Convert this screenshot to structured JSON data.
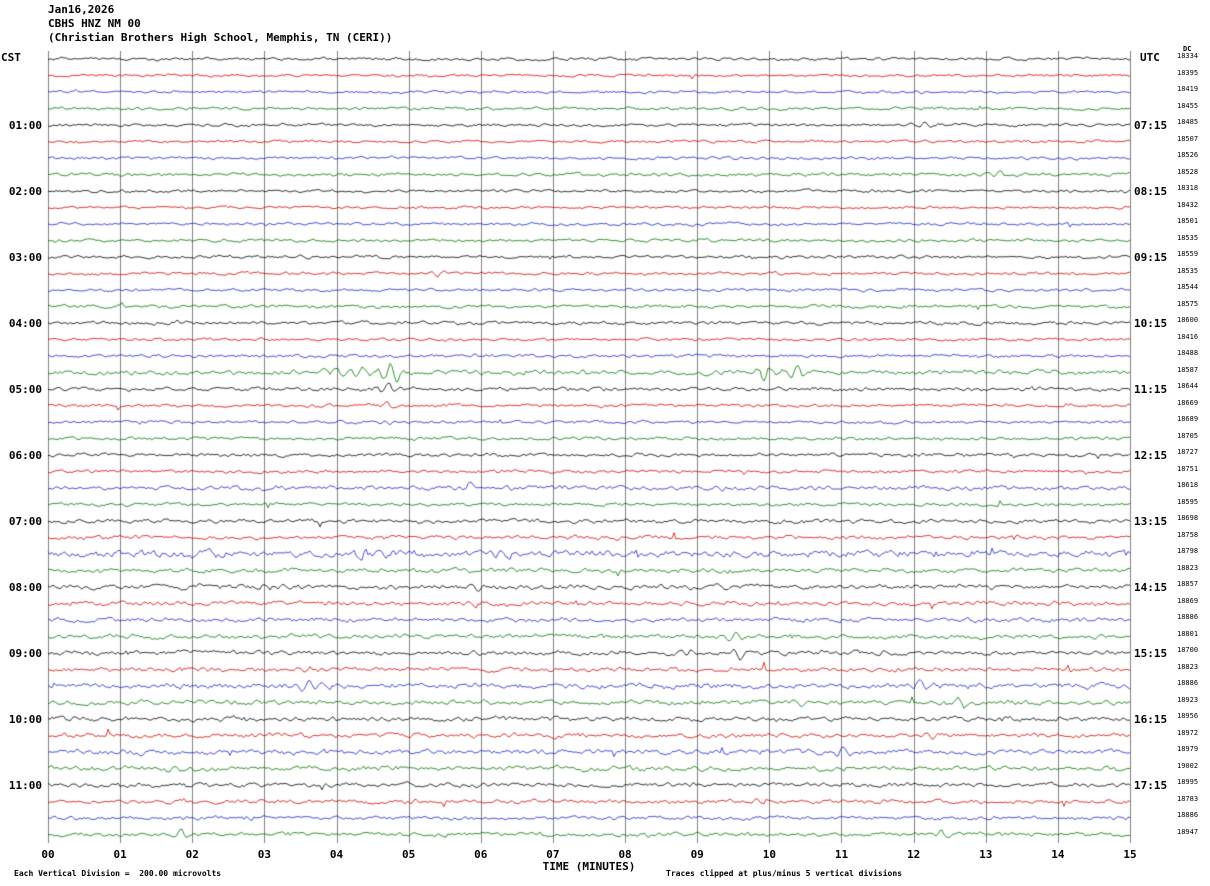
{
  "header": {
    "date": "Jan16,2026",
    "station": "CBHS HNZ NM 00",
    "location": "(Christian Brothers High School, Memphis, TN (CERI))"
  },
  "axis": {
    "left_tz": "CST",
    "right_tz": "UTC",
    "dc_header": "DC",
    "x_label": "TIME (MINUTES)",
    "x_ticks": [
      "00",
      "01",
      "02",
      "03",
      "04",
      "05",
      "06",
      "07",
      "08",
      "09",
      "10",
      "11",
      "12",
      "13",
      "14",
      "15"
    ]
  },
  "footer": {
    "scale_note": "Each Vertical Division =  200.00 microvolts",
    "clip_note": "Traces clipped at plus/minus 5 vertical divisions"
  },
  "left_hour_labels": [
    {
      "row": 4,
      "label": "01:00"
    },
    {
      "row": 8,
      "label": "02:00"
    },
    {
      "row": 12,
      "label": "03:00"
    },
    {
      "row": 16,
      "label": "04:00"
    },
    {
      "row": 20,
      "label": "05:00"
    },
    {
      "row": 24,
      "label": "06:00"
    },
    {
      "row": 28,
      "label": "07:00"
    },
    {
      "row": 32,
      "label": "08:00"
    },
    {
      "row": 36,
      "label": "09:00"
    },
    {
      "row": 40,
      "label": "10:00"
    },
    {
      "row": 44,
      "label": "11:00"
    }
  ],
  "right_hour_labels": [
    {
      "row": 4,
      "label": "07:15"
    },
    {
      "row": 8,
      "label": "08:15"
    },
    {
      "row": 12,
      "label": "09:15"
    },
    {
      "row": 16,
      "label": "10:15"
    },
    {
      "row": 20,
      "label": "11:15"
    },
    {
      "row": 24,
      "label": "12:15"
    },
    {
      "row": 28,
      "label": "13:15"
    },
    {
      "row": 32,
      "label": "14:15"
    },
    {
      "row": 36,
      "label": "15:15"
    },
    {
      "row": 40,
      "label": "16:15"
    },
    {
      "row": 44,
      "label": "17:15"
    }
  ],
  "chart_data": {
    "type": "line",
    "title": "CBHS HNZ NM 00 helicorder, 15-minute traces",
    "xlabel": "TIME (MINUTES)",
    "x_range_minutes": [
      0,
      15
    ],
    "grid": true,
    "minutes_per_row": 15,
    "trace_color_cycle": [
      "#000000",
      "#d40000",
      "#2222cc",
      "#007700"
    ],
    "rows": [
      {
        "dc": 18334,
        "color": "#000000",
        "amp": 1.0
      },
      {
        "dc": 18395,
        "color": "#d40000",
        "amp": 0.9
      },
      {
        "dc": 18419,
        "color": "#2222cc",
        "amp": 0.9
      },
      {
        "dc": 18455,
        "color": "#007700",
        "amp": 1.0
      },
      {
        "dc": 18485,
        "color": "#000000",
        "amp": 1.0
      },
      {
        "dc": 18507,
        "color": "#d40000",
        "amp": 0.9
      },
      {
        "dc": 18526,
        "color": "#2222cc",
        "amp": 1.0
      },
      {
        "dc": 18528,
        "color": "#007700",
        "amp": 1.1
      },
      {
        "dc": 18318,
        "color": "#000000",
        "amp": 1.0
      },
      {
        "dc": 18432,
        "color": "#d40000",
        "amp": 0.9
      },
      {
        "dc": 18501,
        "color": "#2222cc",
        "amp": 1.0
      },
      {
        "dc": 18535,
        "color": "#007700",
        "amp": 1.0
      },
      {
        "dc": 18559,
        "color": "#000000",
        "amp": 1.1
      },
      {
        "dc": 18535,
        "color": "#d40000",
        "amp": 1.0
      },
      {
        "dc": 18544,
        "color": "#2222cc",
        "amp": 1.0
      },
      {
        "dc": 18575,
        "color": "#007700",
        "amp": 1.1
      },
      {
        "dc": 18600,
        "color": "#000000",
        "amp": 1.2
      },
      {
        "dc": 18416,
        "color": "#d40000",
        "amp": 1.0
      },
      {
        "dc": 18488,
        "color": "#2222cc",
        "amp": 1.1
      },
      {
        "dc": 18587,
        "color": "#007700",
        "amp": 1.6
      },
      {
        "dc": 18644,
        "color": "#000000",
        "amp": 1.3
      },
      {
        "dc": 18669,
        "color": "#d40000",
        "amp": 1.1
      },
      {
        "dc": 18689,
        "color": "#2222cc",
        "amp": 1.0
      },
      {
        "dc": 18705,
        "color": "#007700",
        "amp": 1.1
      },
      {
        "dc": 18727,
        "color": "#000000",
        "amp": 1.2
      },
      {
        "dc": 18751,
        "color": "#d40000",
        "amp": 1.1
      },
      {
        "dc": 18618,
        "color": "#2222cc",
        "amp": 1.5
      },
      {
        "dc": 18595,
        "color": "#007700",
        "amp": 1.1
      },
      {
        "dc": 18698,
        "color": "#000000",
        "amp": 1.4
      },
      {
        "dc": 18758,
        "color": "#d40000",
        "amp": 1.3
      },
      {
        "dc": 18798,
        "color": "#2222cc",
        "amp": 2.3
      },
      {
        "dc": 18823,
        "color": "#007700",
        "amp": 1.5
      },
      {
        "dc": 18857,
        "color": "#000000",
        "amp": 1.7
      },
      {
        "dc": 18869,
        "color": "#d40000",
        "amp": 1.5
      },
      {
        "dc": 18886,
        "color": "#2222cc",
        "amp": 1.4
      },
      {
        "dc": 18801,
        "color": "#007700",
        "amp": 1.5
      },
      {
        "dc": 18700,
        "color": "#000000",
        "amp": 1.6
      },
      {
        "dc": 18823,
        "color": "#d40000",
        "amp": 1.5
      },
      {
        "dc": 18886,
        "color": "#2222cc",
        "amp": 1.8
      },
      {
        "dc": 18923,
        "color": "#007700",
        "amp": 1.6
      },
      {
        "dc": 18956,
        "color": "#000000",
        "amp": 1.6
      },
      {
        "dc": 18972,
        "color": "#d40000",
        "amp": 1.5
      },
      {
        "dc": 18979,
        "color": "#2222cc",
        "amp": 1.7
      },
      {
        "dc": 19002,
        "color": "#007700",
        "amp": 1.6
      },
      {
        "dc": 18995,
        "color": "#000000",
        "amp": 1.5
      },
      {
        "dc": 18783,
        "color": "#d40000",
        "amp": 1.4
      },
      {
        "dc": 18886,
        "color": "#2222cc",
        "amp": 1.3
      },
      {
        "dc": 18947,
        "color": "#007700",
        "amp": 1.4
      }
    ],
    "events": [
      {
        "row": 4,
        "m": 12.15,
        "a": 4,
        "w": 0.1
      },
      {
        "row": 7,
        "m": 13.2,
        "a": 3,
        "w": 0.15
      },
      {
        "row": 13,
        "m": 5.4,
        "a": 3,
        "w": 0.1
      },
      {
        "row": 19,
        "m": 4.3,
        "a": 4,
        "w": 0.35
      },
      {
        "row": 19,
        "m": 4.78,
        "a": 11,
        "w": 0.09
      },
      {
        "row": 19,
        "m": 9.95,
        "a": 8,
        "w": 0.1
      },
      {
        "row": 19,
        "m": 10.35,
        "a": 11,
        "w": 0.09
      },
      {
        "row": 20,
        "m": 4.72,
        "a": 9,
        "w": 0.07
      },
      {
        "row": 21,
        "m": 4.7,
        "a": 4,
        "w": 0.07
      },
      {
        "row": 22,
        "m": 4.7,
        "a": 2.5,
        "w": 0.08
      },
      {
        "row": 26,
        "m": 5.85,
        "a": 5,
        "w": 0.1
      },
      {
        "row": 26,
        "m": 9.3,
        "a": 4,
        "w": 0.1
      },
      {
        "row": 28,
        "m": 5.3,
        "a": 3,
        "w": 0.12
      },
      {
        "row": 30,
        "m": 4.4,
        "a": 5,
        "w": 0.15
      },
      {
        "row": 30,
        "m": 6.35,
        "a": 4,
        "w": 0.12
      },
      {
        "row": 30,
        "m": 9.1,
        "a": 4,
        "w": 0.12
      },
      {
        "row": 32,
        "m": 5.95,
        "a": 5,
        "w": 0.1
      },
      {
        "row": 33,
        "m": 5.9,
        "a": 3,
        "w": 0.1
      },
      {
        "row": 35,
        "m": 9.5,
        "a": 4,
        "w": 0.12
      },
      {
        "row": 36,
        "m": 8.85,
        "a": 5,
        "w": 0.08
      },
      {
        "row": 36,
        "m": 9.55,
        "a": 7,
        "w": 0.08
      },
      {
        "row": 37,
        "m": 3.6,
        "a": 3,
        "w": 0.12
      },
      {
        "row": 38,
        "m": 3.65,
        "a": 6,
        "w": 0.2
      },
      {
        "row": 38,
        "m": 12.1,
        "a": 7,
        "w": 0.15
      },
      {
        "row": 39,
        "m": 10.4,
        "a": 4,
        "w": 0.12
      },
      {
        "row": 39,
        "m": 12.7,
        "a": 5,
        "w": 0.1
      },
      {
        "row": 41,
        "m": 12.25,
        "a": 4,
        "w": 0.1
      },
      {
        "row": 42,
        "m": 11.0,
        "a": 5,
        "w": 0.12
      },
      {
        "row": 43,
        "m": 1.85,
        "a": 4,
        "w": 0.1
      },
      {
        "row": 45,
        "m": 9.9,
        "a": 4,
        "w": 0.1
      },
      {
        "row": 47,
        "m": 1.85,
        "a": 6,
        "w": 0.08
      },
      {
        "row": 47,
        "m": 12.4,
        "a": 4,
        "w": 0.1
      }
    ]
  }
}
